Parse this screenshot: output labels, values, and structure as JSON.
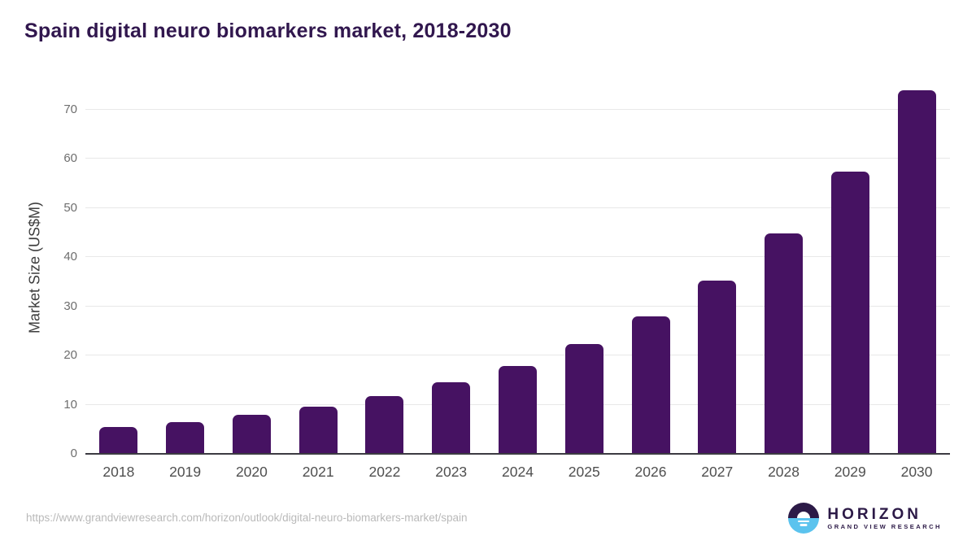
{
  "chart_data": {
    "type": "bar",
    "title": "Spain digital neuro biomarkers market, 2018-2030",
    "xlabel": "",
    "ylabel": "Market Size (US$M)",
    "categories": [
      "2018",
      "2019",
      "2020",
      "2021",
      "2022",
      "2023",
      "2024",
      "2025",
      "2026",
      "2027",
      "2028",
      "2029",
      "2030"
    ],
    "values": [
      5.5,
      6.5,
      8.0,
      9.6,
      11.8,
      14.5,
      17.9,
      22.4,
      28.0,
      35.3,
      44.9,
      57.4,
      73.9
    ],
    "yticks": [
      0,
      10,
      20,
      30,
      40,
      50,
      60,
      70
    ],
    "ylim": [
      0,
      75.8
    ],
    "grid": true,
    "legend": "none",
    "bar_color": "#461262"
  },
  "colors": {
    "title": "#31174e",
    "bar": "#461262",
    "axis": "#3c3b42",
    "grid": "#e8e8e8",
    "y_tick_text": "#6e6e6e",
    "x_label_text": "#4f4f4f",
    "url_text": "#b9b9b9",
    "logo_dark": "#2c1a47",
    "logo_blue": "#5bc3ee"
  },
  "footer": {
    "source_url": "https://www.grandviewresearch.com/horizon/outlook/digital-neuro-biomarkers-market/spain",
    "logo": {
      "brand": "HORIZON",
      "tagline": "GRAND VIEW RESEARCH"
    }
  }
}
